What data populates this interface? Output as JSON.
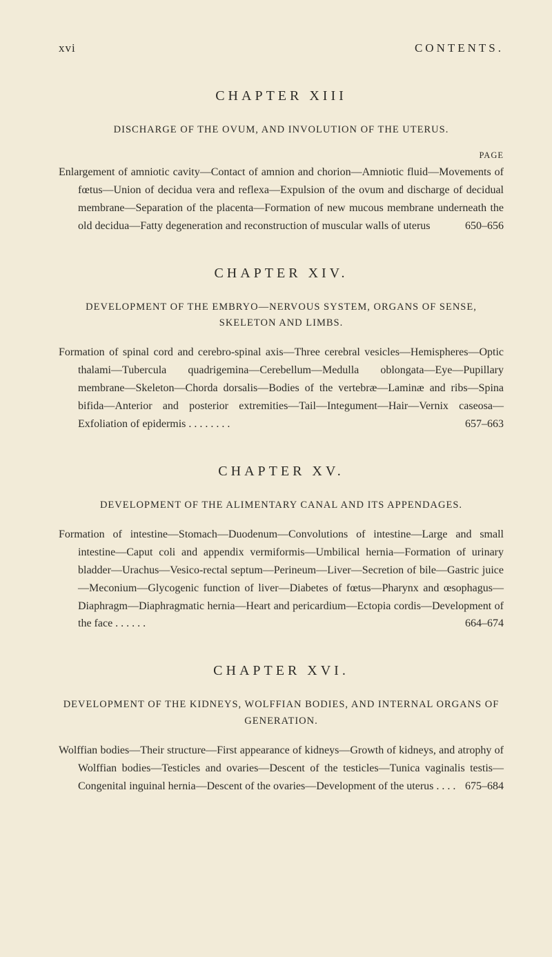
{
  "header": {
    "page_number": "xvi",
    "contents_label": "CONTENTS."
  },
  "page_label": "PAGE",
  "chapters": [
    {
      "title": "CHAPTER XIII",
      "subtitle": "DISCHARGE OF THE OVUM, AND INVOLUTION OF THE UTERUS.",
      "show_page_label": true,
      "entry": "Enlargement of amniotic cavity—Contact of amnion and chorion—Amniotic fluid—Movements of fœtus—Union of decidua vera and reflexa—Expulsion of the ovum and discharge of decidual membrane—Separation of the placenta—Formation of new mucous membrane underneath the old decidua—Fatty degeneration and reconstruction of muscular walls of uterus",
      "page_range": "650–656"
    },
    {
      "title": "CHAPTER XIV.",
      "subtitle": "DEVELOPMENT OF THE EMBRYO—NERVOUS SYSTEM, ORGANS OF SENSE, SKELETON AND LIMBS.",
      "show_page_label": false,
      "entry": "Formation of spinal cord and cerebro-spinal axis—Three cerebral vesicles—Hemispheres—Optic thalami—Tubercula quadrigemina—Cerebellum—Medulla oblongata—Eye—Pupillary membrane—Skeleton—Chorda dorsalis—Bodies of the vertebræ—Laminæ and ribs—Spina bifida—Anterior and posterior extremities—Tail—Integument—Hair—Vernix caseosa—Exfoliation of epidermis       .       .       .       .       .       .       .       .",
      "page_range": "657–663"
    },
    {
      "title": "CHAPTER XV.",
      "subtitle": "DEVELOPMENT OF THE ALIMENTARY CANAL AND ITS APPENDAGES.",
      "show_page_label": false,
      "entry": "Formation of intestine—Stomach—Duodenum—Convolutions of intestine—Large and small intestine—Caput coli and appendix vermiformis—Umbilical hernia—Formation of urinary bladder—Urachus—Vesico-rectal septum—Perineum—Liver—Secretion of bile—Gastric juice—Meconium—Glycogenic function of liver—Diabetes of fœtus—Pharynx and œsophagus—Diaphragm—Diaphragmatic hernia—Heart and pericardium—Ectopia cordis—Development of the face       .       .       .       .       .       .",
      "page_range": "664–674"
    },
    {
      "title": "CHAPTER XVI.",
      "subtitle": "DEVELOPMENT OF THE KIDNEYS, WOLFFIAN BODIES, AND INTERNAL ORGANS OF GENERATION.",
      "show_page_label": false,
      "entry": "Wolffian bodies—Their structure—First appearance of kidneys—Growth of kidneys, and atrophy of Wolffian bodies—Testicles and ovaries—Descent of the testicles—Tunica vaginalis testis—Congenital inguinal hernia—Descent of the ovaries—Development of the uterus     .       .       .       .",
      "page_range": "675–684"
    }
  ]
}
